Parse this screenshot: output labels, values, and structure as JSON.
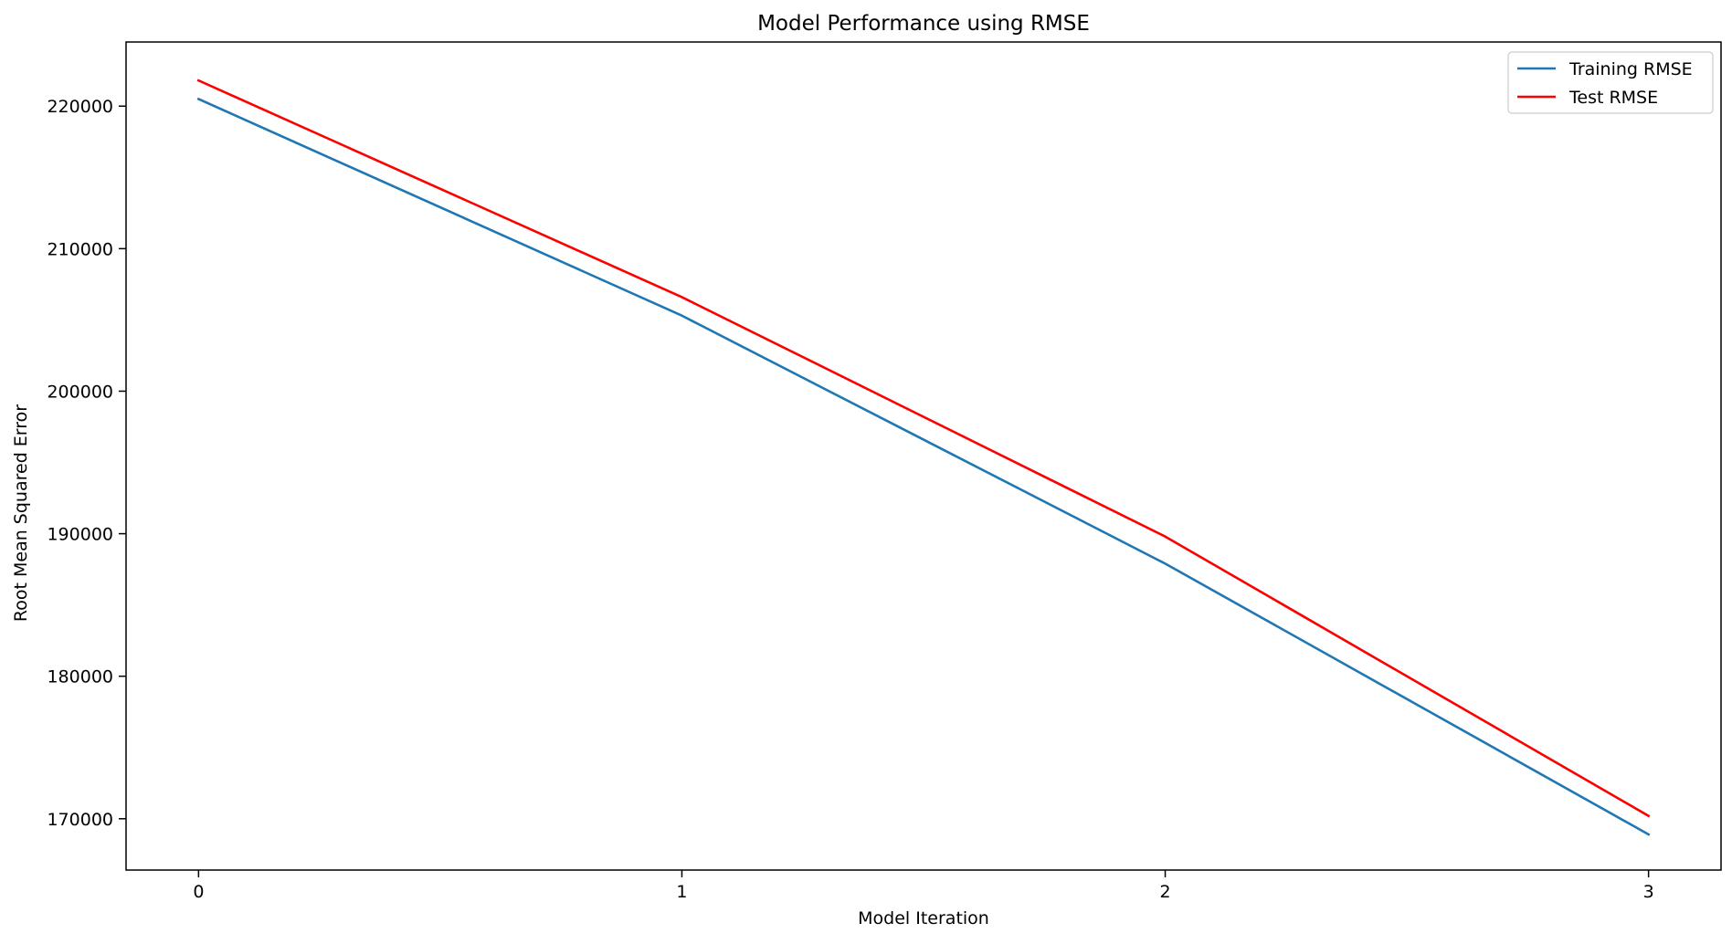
{
  "chart_data": {
    "type": "line",
    "title": "Model Performance using RMSE",
    "xlabel": "Model Iteration",
    "ylabel": "Root Mean Squared Error",
    "x": [
      0,
      1,
      2,
      3
    ],
    "xlim": [
      -0.15,
      3.15
    ],
    "ylim": [
      166400,
      224500
    ],
    "xticks": [
      0,
      1,
      2,
      3
    ],
    "yticks": [
      170000,
      180000,
      190000,
      200000,
      210000,
      220000
    ],
    "grid": false,
    "legend_position": "top-right",
    "series": [
      {
        "name": "Training RMSE",
        "color": "#1f77b4",
        "values": [
          220500,
          205300,
          187900,
          168900
        ]
      },
      {
        "name": "Test RMSE",
        "color": "#ff0000",
        "values": [
          221800,
          206600,
          189800,
          170200
        ]
      }
    ]
  }
}
